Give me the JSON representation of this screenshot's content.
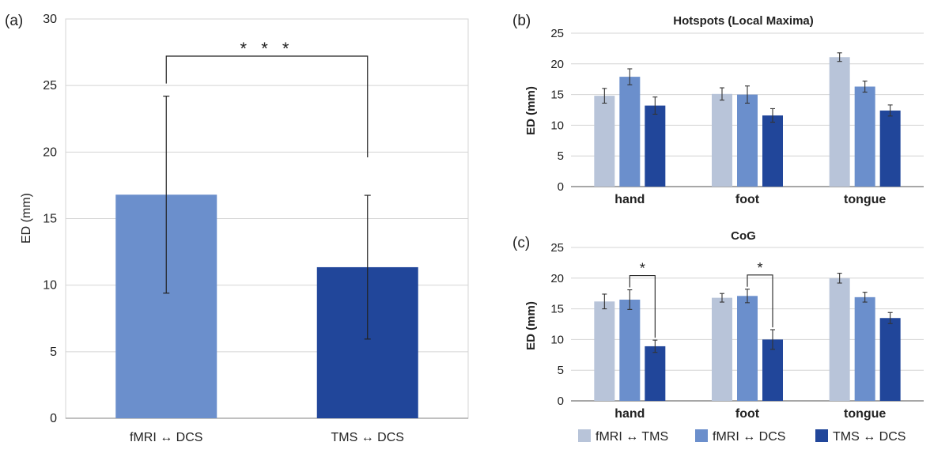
{
  "chart_data": [
    {
      "panel_label": "(a)",
      "type": "bar",
      "title": "",
      "ylabel": "ED (mm)",
      "ylim": [
        0,
        30
      ],
      "yticks": [
        "0",
        "5",
        "10",
        "15",
        "20",
        "25",
        "30"
      ],
      "categories": [
        "fMRI  ↔ DCS",
        "TMS  ↔ DCS"
      ],
      "values": [
        16.8,
        11.35
      ],
      "errors": [
        7.4,
        5.4
      ],
      "colors": [
        "#6b8fcc",
        "#21469a"
      ],
      "significance": [
        {
          "between": [
            0,
            1
          ],
          "label": "* * *"
        }
      ]
    },
    {
      "panel_label": "(b)",
      "type": "bar",
      "title": "Hotspots (Local Maxima)",
      "ylabel": "ED (mm)",
      "ylim": [
        0,
        25
      ],
      "yticks": [
        "0",
        "5",
        "10",
        "15",
        "20",
        "25"
      ],
      "categories": [
        "hand",
        "foot",
        "tongue"
      ],
      "series": [
        {
          "name": "fMRI ↔ TMS",
          "color": "#b8c4d9",
          "values": [
            14.8,
            15.1,
            21.1
          ],
          "errors": [
            1.2,
            1.0,
            0.7
          ]
        },
        {
          "name": "fMRI ↔ DCS",
          "color": "#6b8fcc",
          "values": [
            17.9,
            15.0,
            16.3
          ],
          "errors": [
            1.3,
            1.4,
            0.9
          ]
        },
        {
          "name": "TMS ↔ DCS",
          "color": "#21469a",
          "values": [
            13.2,
            11.6,
            12.4
          ],
          "errors": [
            1.4,
            1.1,
            0.9
          ]
        }
      ],
      "significance": []
    },
    {
      "panel_label": "(c)",
      "type": "bar",
      "title": "CoG",
      "ylabel": "ED (mm)",
      "ylim": [
        0,
        25
      ],
      "yticks": [
        "0",
        "5",
        "10",
        "15",
        "20",
        "25"
      ],
      "categories": [
        "hand",
        "foot",
        "tongue"
      ],
      "series": [
        {
          "name": "fMRI ↔ TMS",
          "color": "#b8c4d9",
          "values": [
            16.2,
            16.8,
            20.0
          ],
          "errors": [
            1.2,
            0.7,
            0.8
          ]
        },
        {
          "name": "fMRI ↔ DCS",
          "color": "#6b8fcc",
          "values": [
            16.5,
            17.1,
            16.9
          ],
          "errors": [
            1.6,
            1.1,
            0.8
          ]
        },
        {
          "name": "TMS ↔ DCS",
          "color": "#21469a",
          "values": [
            8.9,
            10.0,
            13.5
          ],
          "errors": [
            1.0,
            1.6,
            0.9
          ]
        }
      ],
      "significance": [
        {
          "category": "hand",
          "between": [
            1,
            2
          ],
          "label": "*"
        },
        {
          "category": "foot",
          "between": [
            1,
            2
          ],
          "label": "*"
        }
      ]
    }
  ],
  "legend": [
    {
      "label": "fMRI ↔ TMS",
      "color": "#b8c4d9"
    },
    {
      "label": "fMRI ↔ DCS",
      "color": "#6b8fcc"
    },
    {
      "label": "TMS ↔ DCS",
      "color": "#21469a"
    }
  ]
}
